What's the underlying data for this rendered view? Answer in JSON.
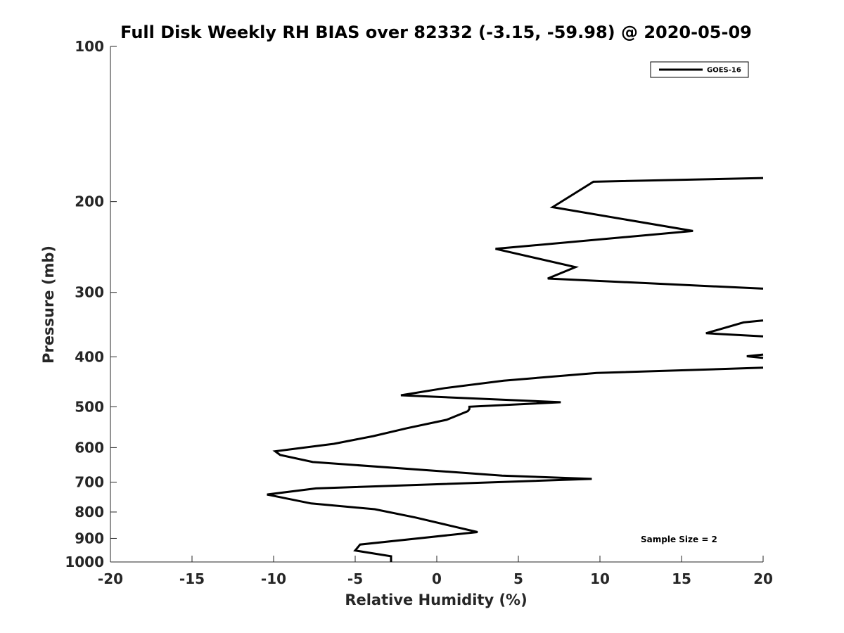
{
  "chart_data": {
    "type": "line",
    "title": "Full Disk Weekly RH BIAS over 82332 (-3.15, -59.98) @ 2020-05-09",
    "xlabel": "Relative Humidity (%)",
    "ylabel": "Pressure (mb)",
    "xlim": [
      -20,
      20
    ],
    "ylim": [
      100,
      1000
    ],
    "y_scale": "log",
    "y_reversed": true,
    "grid": false,
    "x_ticks": [
      -20,
      -15,
      -10,
      -5,
      0,
      5,
      10,
      15,
      20
    ],
    "x_tick_labels": [
      "-20",
      "-15",
      "-10",
      "-5",
      "0",
      "5",
      "10",
      "15",
      "20"
    ],
    "y_ticks": [
      100,
      200,
      300,
      400,
      500,
      600,
      700,
      800,
      900,
      1000
    ],
    "y_tick_labels": [
      "100",
      "200",
      "300",
      "400",
      "500",
      "600",
      "700",
      "800",
      "900",
      "1000"
    ],
    "legend_position": "top-right",
    "annotation": "Sample Size = 2",
    "series": [
      {
        "name": "GOES-16",
        "color": "#000000",
        "segments": [
          [
            [
              -2.8,
              1000
            ],
            [
              -2.8,
              975
            ],
            [
              -5.0,
              950
            ],
            [
              -4.7,
              925
            ],
            [
              2.5,
              875
            ],
            [
              0.8,
              850
            ],
            [
              -1.3,
              820
            ],
            [
              -3.8,
              790
            ],
            [
              -7.7,
              770
            ],
            [
              -10.4,
              740
            ],
            [
              -7.4,
              720
            ],
            [
              9.5,
              690
            ],
            [
              4.0,
              680
            ],
            [
              -7.6,
              640
            ],
            [
              -9.6,
              620
            ],
            [
              -9.9,
              610
            ],
            [
              -6.3,
              590
            ],
            [
              -3.9,
              570
            ],
            [
              -1.8,
              550
            ],
            [
              0.6,
              530
            ],
            [
              1.9,
              510
            ],
            [
              2.0,
              505
            ],
            [
              2.0,
              500
            ],
            [
              7.6,
              490
            ],
            [
              -2.2,
              475
            ],
            [
              0.5,
              460
            ],
            [
              4.1,
              445
            ],
            [
              9.8,
              430
            ],
            [
              20,
              420
            ]
          ],
          [
            [
              20,
              396
            ],
            [
              19.0,
              399
            ],
            [
              20,
              402
            ]
          ],
          [
            [
              20,
              365
            ],
            [
              16.5,
              360
            ],
            [
              18.8,
              343
            ],
            [
              20,
              340
            ]
          ],
          [
            [
              20,
              295
            ],
            [
              6.8,
              282
            ],
            [
              8.5,
              268
            ],
            [
              3.6,
              247
            ],
            [
              15.7,
              228
            ],
            [
              7.1,
              205
            ],
            [
              9.6,
              183
            ],
            [
              20,
              180
            ]
          ]
        ]
      }
    ]
  }
}
